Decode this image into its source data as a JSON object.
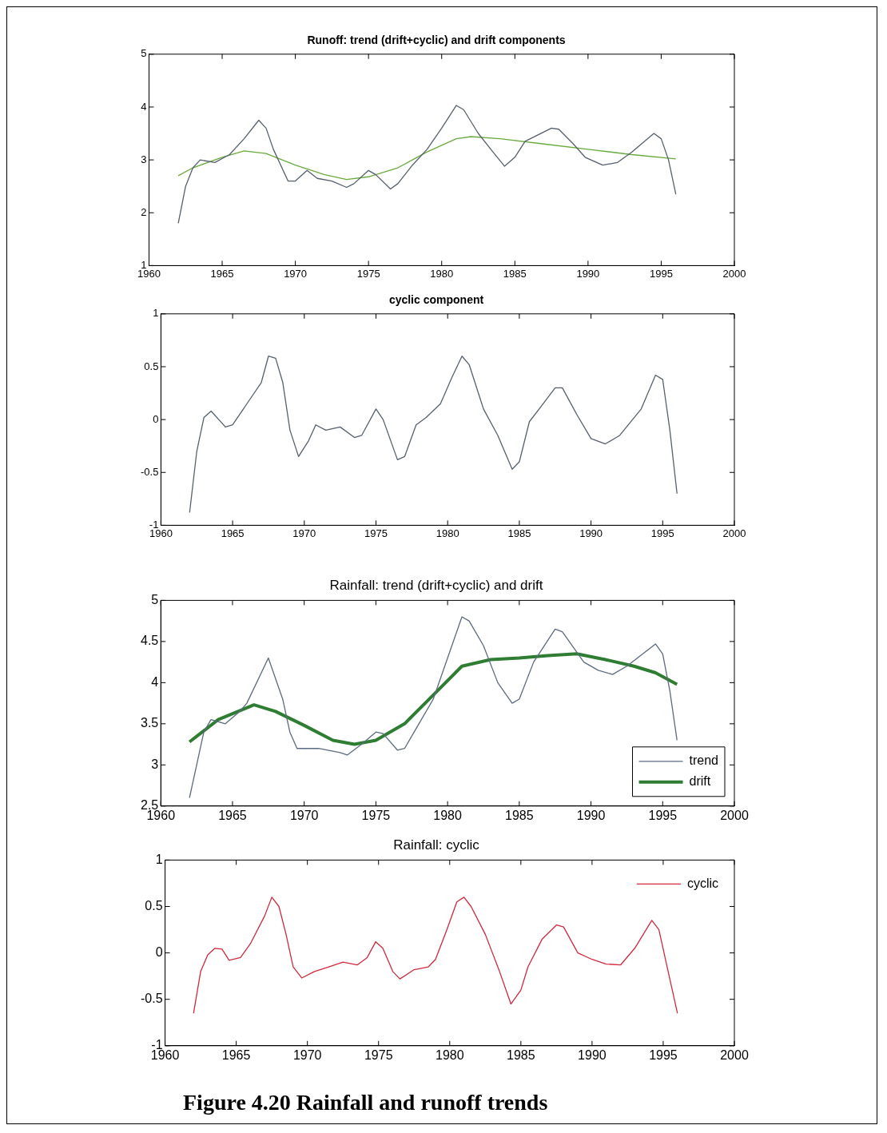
{
  "chart_data": [
    {
      "type": "line",
      "title": "Runoff: trend (drift+cyclic) and drift components",
      "xlim": [
        1960,
        2000
      ],
      "xticks": [
        1960,
        1965,
        1970,
        1975,
        1980,
        1985,
        1990,
        1995,
        2000
      ],
      "ylim": [
        1,
        5
      ],
      "yticks": [
        1,
        2,
        3,
        4,
        5
      ],
      "grid": false,
      "legend": false,
      "marker": "none",
      "line_style": "solid",
      "series": [
        {
          "color": "#55606e",
          "x": [
            1962,
            1962.5,
            1963,
            1963.5,
            1964.5,
            1965.5,
            1966.5,
            1967.5,
            1968,
            1968.5,
            1969.5,
            1970,
            1970.8,
            1971.5,
            1972.5,
            1973.5,
            1974,
            1975,
            1975.5,
            1976.5,
            1977,
            1978,
            1979,
            1980,
            1981,
            1981.5,
            1982.5,
            1983.5,
            1984.3,
            1985,
            1985.7,
            1987.5,
            1988,
            1989,
            1989.8,
            1991,
            1992,
            1993,
            1994.5,
            1995,
            1995.5,
            1996
          ],
          "values": [
            1.8,
            2.5,
            2.85,
            3.0,
            2.95,
            3.1,
            3.4,
            3.75,
            3.6,
            3.2,
            2.6,
            2.6,
            2.8,
            2.65,
            2.6,
            2.48,
            2.55,
            2.8,
            2.72,
            2.45,
            2.55,
            2.9,
            3.2,
            3.6,
            4.03,
            3.95,
            3.5,
            3.15,
            2.88,
            3.05,
            3.35,
            3.6,
            3.58,
            3.3,
            3.05,
            2.9,
            2.95,
            3.15,
            3.5,
            3.4,
            3.0,
            2.35
          ]
        },
        {
          "color": "#6aaa3c",
          "x": [
            1962,
            1963,
            1965,
            1966.5,
            1968,
            1970,
            1972,
            1973.5,
            1975,
            1977,
            1979,
            1981,
            1982,
            1984,
            1987,
            1990,
            1993,
            1996
          ],
          "values": [
            2.7,
            2.85,
            3.05,
            3.17,
            3.12,
            2.9,
            2.72,
            2.63,
            2.68,
            2.85,
            3.15,
            3.4,
            3.44,
            3.4,
            3.3,
            3.2,
            3.1,
            3.02
          ]
        }
      ]
    },
    {
      "type": "line",
      "title": "cyclic component",
      "xlim": [
        1960,
        2000
      ],
      "xticks": [
        1960,
        1965,
        1970,
        1975,
        1980,
        1985,
        1990,
        1995,
        2000
      ],
      "ylim": [
        -1,
        1
      ],
      "yticks": [
        -1,
        -0.5,
        0,
        0.5,
        1
      ],
      "grid": false,
      "legend": false,
      "marker": "none",
      "line_style": "solid",
      "series": [
        {
          "color": "#55606e",
          "x": [
            1962,
            1962.5,
            1963,
            1963.5,
            1964.5,
            1965,
            1966,
            1967,
            1967.5,
            1968,
            1968.5,
            1969,
            1969.6,
            1970.3,
            1970.8,
            1971.5,
            1972.5,
            1973.5,
            1974,
            1975,
            1975.5,
            1976.5,
            1977,
            1977.8,
            1978.5,
            1979.5,
            1980.3,
            1981,
            1981.5,
            1982.5,
            1983.5,
            1984.5,
            1985,
            1985.7,
            1986.5,
            1987.5,
            1988,
            1989,
            1990,
            1991,
            1992,
            1993.5,
            1994.5,
            1995,
            1995.5,
            1996
          ],
          "values": [
            -0.88,
            -0.3,
            0.02,
            0.08,
            -0.07,
            -0.05,
            0.15,
            0.35,
            0.6,
            0.58,
            0.35,
            -0.1,
            -0.35,
            -0.2,
            -0.05,
            -0.1,
            -0.07,
            -0.17,
            -0.15,
            0.1,
            0.0,
            -0.38,
            -0.35,
            -0.05,
            0.02,
            0.15,
            0.4,
            0.6,
            0.52,
            0.1,
            -0.15,
            -0.47,
            -0.4,
            -0.02,
            0.12,
            0.3,
            0.3,
            0.05,
            -0.18,
            -0.23,
            -0.15,
            0.1,
            0.42,
            0.38,
            -0.1,
            -0.7
          ]
        }
      ]
    },
    {
      "type": "line",
      "title": "Rainfall: trend (drift+cyclic) and drift",
      "xlim": [
        1960,
        2000
      ],
      "xticks": [
        1960,
        1965,
        1970,
        1975,
        1980,
        1985,
        1990,
        1995,
        2000
      ],
      "ylim": [
        2.5,
        5
      ],
      "yticks": [
        2.5,
        3,
        3.5,
        4,
        4.5,
        5
      ],
      "grid": false,
      "legend": "bottom right",
      "marker": "none",
      "line_style": "solid",
      "series": [
        {
          "name": "trend",
          "color": "#5a6a80",
          "x": [
            1962,
            1962.5,
            1963,
            1963.5,
            1964.5,
            1965.5,
            1966,
            1967.5,
            1968.5,
            1969,
            1969.5,
            1971,
            1972.5,
            1973,
            1974,
            1975,
            1975.5,
            1976.5,
            1977,
            1978,
            1979,
            1980,
            1981,
            1981.5,
            1982.5,
            1983.5,
            1984.5,
            1985,
            1986,
            1987.5,
            1988,
            1989.5,
            1990.5,
            1991.5,
            1992.5,
            1994.5,
            1995,
            1995.5,
            1996
          ],
          "values": [
            2.6,
            3.0,
            3.4,
            3.55,
            3.5,
            3.65,
            3.75,
            4.3,
            3.8,
            3.4,
            3.2,
            3.2,
            3.15,
            3.12,
            3.25,
            3.4,
            3.38,
            3.18,
            3.2,
            3.5,
            3.8,
            4.3,
            4.8,
            4.75,
            4.45,
            4.0,
            3.75,
            3.8,
            4.25,
            4.65,
            4.62,
            4.25,
            4.15,
            4.1,
            4.2,
            4.47,
            4.35,
            3.9,
            3.3
          ]
        },
        {
          "name": "drift",
          "color": "#2e7d32",
          "x": [
            1962,
            1964,
            1966.5,
            1968,
            1970,
            1972,
            1973.5,
            1975,
            1977,
            1979,
            1981,
            1983,
            1985,
            1987,
            1989,
            1991,
            1993,
            1994.5,
            1996
          ],
          "values": [
            3.28,
            3.55,
            3.73,
            3.65,
            3.48,
            3.3,
            3.25,
            3.3,
            3.5,
            3.85,
            4.2,
            4.28,
            4.3,
            4.33,
            4.35,
            4.28,
            4.2,
            4.12,
            3.98
          ]
        }
      ]
    },
    {
      "type": "line",
      "title": "Rainfall: cyclic",
      "xlim": [
        1960,
        2000
      ],
      "xticks": [
        1960,
        1965,
        1970,
        1975,
        1980,
        1985,
        1990,
        1995,
        2000
      ],
      "ylim": [
        -1,
        1
      ],
      "yticks": [
        -1,
        -0.5,
        0,
        0.5,
        1
      ],
      "grid": false,
      "legend": "top right",
      "marker": "none",
      "line_style": "solid",
      "annotations": [
        "Figure 4.20 Rainfall and runoff trends"
      ],
      "series": [
        {
          "name": "cyclic",
          "color": "#d0283c",
          "x": [
            1962,
            1962.5,
            1963,
            1963.5,
            1964,
            1964.5,
            1965.3,
            1966,
            1967,
            1967.5,
            1968,
            1968.5,
            1969,
            1969.6,
            1970.5,
            1971.5,
            1972.5,
            1973.5,
            1974.2,
            1974.8,
            1975.3,
            1976,
            1976.5,
            1977.5,
            1978.5,
            1979,
            1979.8,
            1980.5,
            1981,
            1981.5,
            1982.5,
            1983.5,
            1984.3,
            1985,
            1985.5,
            1986.5,
            1987.5,
            1988,
            1989,
            1990,
            1991,
            1992,
            1993,
            1994.2,
            1994.7,
            1995.2,
            1996
          ],
          "values": [
            -0.65,
            -0.2,
            -0.02,
            0.05,
            0.04,
            -0.08,
            -0.05,
            0.1,
            0.4,
            0.6,
            0.5,
            0.2,
            -0.15,
            -0.27,
            -0.2,
            -0.15,
            -0.1,
            -0.13,
            -0.05,
            0.12,
            0.05,
            -0.2,
            -0.28,
            -0.18,
            -0.15,
            -0.07,
            0.25,
            0.55,
            0.6,
            0.5,
            0.2,
            -0.2,
            -0.55,
            -0.4,
            -0.15,
            0.15,
            0.3,
            0.28,
            0.0,
            -0.07,
            -0.12,
            -0.13,
            0.05,
            0.35,
            0.25,
            -0.1,
            -0.65
          ]
        }
      ]
    }
  ]
}
